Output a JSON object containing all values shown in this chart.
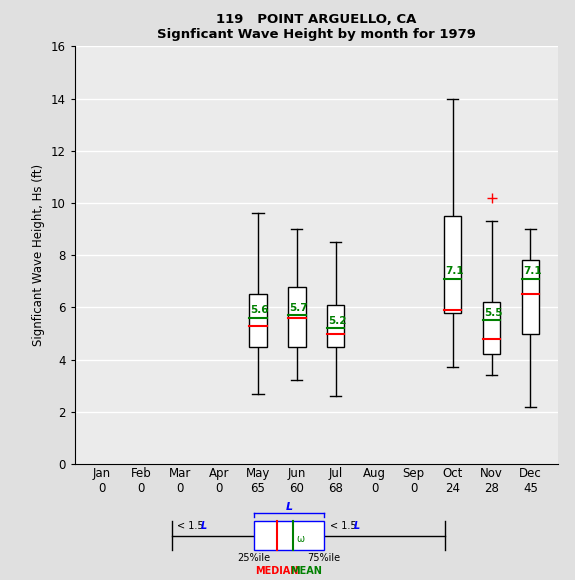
{
  "title1": "119   POINT ARGUELLO, CA",
  "title2": "Signficant Wave Height by month for 1979",
  "ylabel": "Signficant Wave Height, Hs (ft)",
  "months": [
    "Jan",
    "Feb",
    "Mar",
    "Apr",
    "May",
    "Jun",
    "Jul",
    "Aug",
    "Sep",
    "Oct",
    "Nov",
    "Dec"
  ],
  "counts": [
    0,
    0,
    0,
    0,
    65,
    60,
    68,
    0,
    0,
    24,
    28,
    45
  ],
  "ylim": [
    0,
    16
  ],
  "yticks": [
    0,
    2,
    4,
    6,
    8,
    10,
    12,
    14,
    16
  ],
  "boxes": {
    "May": {
      "whisker_low": 2.7,
      "q1": 4.5,
      "median": 5.3,
      "mean": 5.6,
      "q3": 6.5,
      "whisker_high": 9.6,
      "outliers": []
    },
    "Jun": {
      "whisker_low": 3.2,
      "q1": 4.5,
      "median": 5.6,
      "mean": 5.7,
      "q3": 6.8,
      "whisker_high": 9.0,
      "outliers": []
    },
    "Jul": {
      "whisker_low": 2.6,
      "q1": 4.5,
      "median": 5.0,
      "mean": 5.2,
      "q3": 6.1,
      "whisker_high": 8.5,
      "outliers": []
    },
    "Oct": {
      "whisker_low": 3.7,
      "q1": 5.8,
      "median": 5.9,
      "mean": 7.1,
      "q3": 9.5,
      "whisker_high": 14.0,
      "outliers": []
    },
    "Nov": {
      "whisker_low": 3.4,
      "q1": 4.2,
      "median": 4.8,
      "mean": 5.5,
      "q3": 6.2,
      "whisker_high": 9.3,
      "outliers": [
        10.2
      ]
    },
    "Dec": {
      "whisker_low": 2.2,
      "q1": 5.0,
      "median": 6.5,
      "mean": 7.1,
      "q3": 7.8,
      "whisker_high": 9.0,
      "outliers": []
    }
  },
  "active_months": [
    "May",
    "Jun",
    "Jul",
    "Oct",
    "Nov",
    "Dec"
  ],
  "box_width": 0.45,
  "median_color": "#ff0000",
  "mean_color": "#008000",
  "box_edge_color": "#000000",
  "whisker_color": "#000000",
  "bg_color": "#e0e0e0",
  "plot_bg_color": "#ebebeb",
  "grid_color": "#ffffff"
}
